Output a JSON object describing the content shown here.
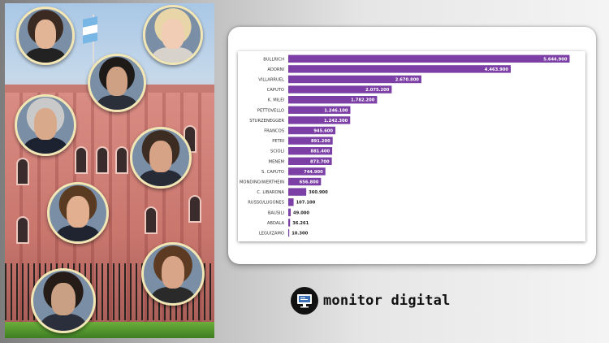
{
  "colors": {
    "bar": "#7b3fa5",
    "value_label": "#ffffff",
    "value_label_outside": "#222222",
    "category_label": "#333333",
    "portrait_ring": "#f2e6b5"
  },
  "chart_data": {
    "type": "bar",
    "orientation": "horizontal",
    "categories": [
      "BULLRICH",
      "ADORNI",
      "VILLARRUEL",
      "CAPUTO",
      "K. MILEI",
      "PETTOVELLO",
      "STURZENEGGER",
      "FRANCOS",
      "PETRI",
      "SCIOLI",
      "MENEM",
      "S. CAPUTO",
      "MONDINO/WERTHEIN",
      "C. LIBARONA",
      "RUSSO/LUGONES",
      "BAUSILI",
      "ABDALA",
      "LEGUIZAMO"
    ],
    "values": [
      5644900,
      4463900,
      2670800,
      2075200,
      1782200,
      1246100,
      1242300,
      945600,
      891200,
      881400,
      873700,
      744900,
      656800,
      360900,
      107100,
      49000,
      36261,
      10300
    ],
    "value_labels": [
      "5.644.900",
      "4.463.900",
      "2.670.800",
      "2.075.200",
      "1.782.200",
      "1.246.100",
      "1.242.300",
      "945.600",
      "891.200",
      "881.400",
      "873.700",
      "744.900",
      "656.800",
      "360.900",
      "107.100",
      "49.000",
      "36.261",
      "10.300"
    ],
    "xlim": [
      0,
      5800000
    ],
    "grid": false,
    "legend": "none"
  },
  "logo": {
    "text": "monitor digital",
    "icon": "computer-monitor-icon"
  },
  "collage": {
    "portraits": [
      {
        "name": "portrait-1",
        "skin": "#e2b596",
        "hair": "#3b2a22",
        "clothes": "#222222"
      },
      {
        "name": "portrait-2",
        "skin": "#f0cdb4",
        "hair": "#e8d6a8",
        "clothes": "#d8d2cc"
      },
      {
        "name": "portrait-3",
        "skin": "#cfa184",
        "hair": "#1e1a18",
        "clothes": "#2b2f3a"
      },
      {
        "name": "portrait-4",
        "skin": "#d9a98c",
        "hair": "#c9c9c9",
        "clothes": "#1c2230"
      },
      {
        "name": "portrait-5",
        "skin": "#d6a386",
        "hair": "#3d2c22",
        "clothes": "#262b36"
      },
      {
        "name": "portrait-6",
        "skin": "#e2b091",
        "hair": "#5b3a22",
        "clothes": "#1f2430"
      },
      {
        "name": "portrait-7",
        "skin": "#d9a588",
        "hair": "#5d3b23",
        "clothes": "#2a2a2a"
      },
      {
        "name": "portrait-8",
        "skin": "#caa084",
        "hair": "#251c17",
        "clothes": "#2a2f3b"
      }
    ]
  }
}
